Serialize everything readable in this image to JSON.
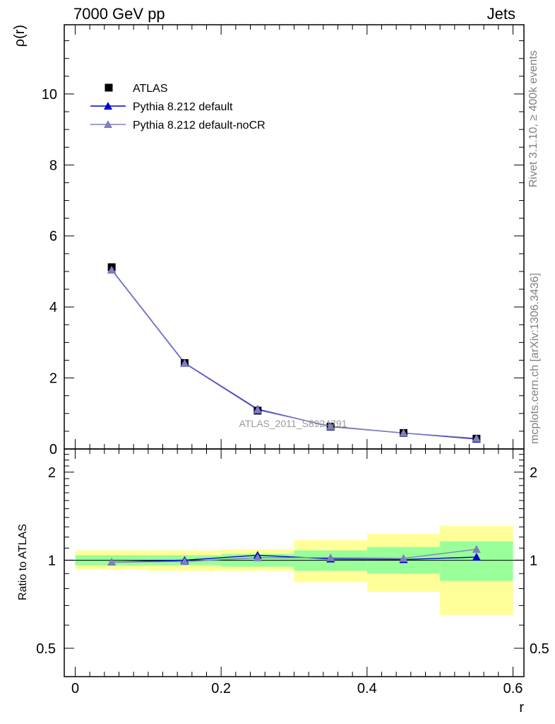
{
  "header": {
    "left_title": "7000 GeV pp",
    "right_title": "Jets"
  },
  "side_labels": {
    "rivet": "Rivet 3.1.10, ≥ 400k events",
    "mcplots": "mcplots.cern.ch [arXiv:1306.3436]"
  },
  "watermark": "ATLAS_2011_S8924791",
  "colors": {
    "data": "#000000",
    "default": "#0000cc",
    "nocr": "#7f7fbf",
    "band_inner": "#99ff99",
    "band_outer": "#ffff99"
  },
  "chart_data": [
    {
      "type": "line",
      "panel": "main",
      "ylabel": "ρ(r)",
      "xlim": [
        -0.015,
        0.615
      ],
      "ylim": [
        0,
        11.95
      ],
      "yticks": [
        0,
        2,
        4,
        6,
        8,
        10
      ],
      "ytick_labels": [
        "0",
        "2",
        "4",
        "6",
        "8",
        "10"
      ],
      "x": [
        0.05,
        0.15,
        0.25,
        0.35,
        0.45,
        0.55
      ],
      "legend": {
        "position": "top-left",
        "entries": [
          "ATLAS",
          "Pythia 8.212 default",
          "Pythia 8.212 default-noCR"
        ]
      },
      "series": [
        {
          "name": "ATLAS",
          "marker": "square",
          "values": [
            5.12,
            2.42,
            1.08,
            0.63,
            0.45,
            0.29
          ]
        },
        {
          "name": "Pythia 8.212 default",
          "marker": "triangle",
          "values": [
            5.05,
            2.42,
            1.12,
            0.63,
            0.45,
            0.28
          ]
        },
        {
          "name": "Pythia 8.212 default-noCR",
          "marker": "triangle",
          "values": [
            5.04,
            2.41,
            1.1,
            0.64,
            0.45,
            0.3
          ]
        }
      ]
    },
    {
      "type": "line",
      "panel": "ratio",
      "ylabel": "Ratio to ATLAS",
      "xlabel": "r",
      "xlim": [
        -0.015,
        0.615
      ],
      "ylim": [
        0.4,
        2.4
      ],
      "yscale": "log",
      "yticks": [
        0.5,
        1,
        2
      ],
      "ytick_labels": [
        "0.5",
        "1",
        "2"
      ],
      "xticks": [
        0,
        0.2,
        0.4,
        0.6
      ],
      "xtick_labels": [
        "0",
        "0.2",
        "0.4",
        "0.6"
      ],
      "x": [
        0.05,
        0.15,
        0.25,
        0.35,
        0.45,
        0.55
      ],
      "bins": [
        [
          0,
          0.1
        ],
        [
          0.1,
          0.2
        ],
        [
          0.2,
          0.3
        ],
        [
          0.3,
          0.4
        ],
        [
          0.4,
          0.5
        ],
        [
          0.5,
          0.6
        ]
      ],
      "band_inner": [
        [
          0.96,
          1.04
        ],
        [
          0.96,
          1.04
        ],
        [
          0.95,
          1.05
        ],
        [
          0.92,
          1.08
        ],
        [
          0.9,
          1.11
        ],
        [
          0.85,
          1.16
        ]
      ],
      "band_outer": [
        [
          0.93,
          1.08
        ],
        [
          0.92,
          1.08
        ],
        [
          0.92,
          1.09
        ],
        [
          0.84,
          1.17
        ],
        [
          0.78,
          1.23
        ],
        [
          0.65,
          1.31
        ]
      ],
      "series": [
        {
          "name": "Pythia 8.212 default",
          "values": [
            0.985,
            1.0,
            1.04,
            1.01,
            1.005,
            1.025
          ]
        },
        {
          "name": "Pythia 8.212 default-noCR",
          "values": [
            0.985,
            0.99,
            1.02,
            1.02,
            1.015,
            1.09
          ]
        }
      ]
    }
  ]
}
